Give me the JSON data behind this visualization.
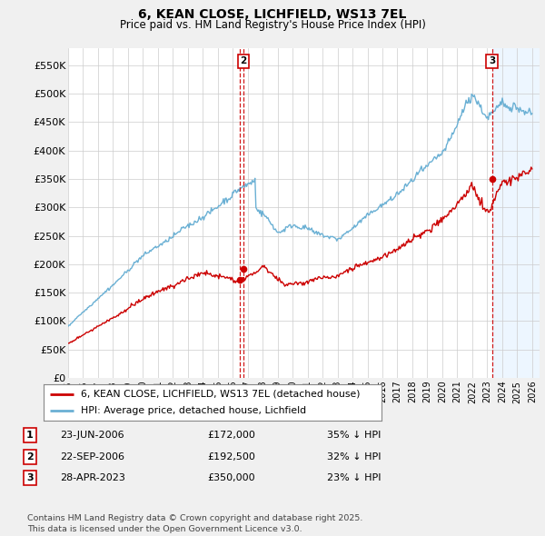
{
  "title": "6, KEAN CLOSE, LICHFIELD, WS13 7EL",
  "subtitle": "Price paid vs. HM Land Registry's House Price Index (HPI)",
  "ylim": [
    0,
    580000
  ],
  "yticks": [
    0,
    50000,
    100000,
    150000,
    200000,
    250000,
    300000,
    350000,
    400000,
    450000,
    500000,
    550000
  ],
  "ytick_labels": [
    "£0",
    "£50K",
    "£100K",
    "£150K",
    "£200K",
    "£250K",
    "£300K",
    "£350K",
    "£400K",
    "£450K",
    "£500K",
    "£550K"
  ],
  "xlim_start": 1995.0,
  "xlim_end": 2026.5,
  "background_color": "#f0f0f0",
  "plot_bg_color": "#ffffff",
  "grid_color": "#cccccc",
  "hpi_color": "#6ab0d4",
  "price_color": "#cc0000",
  "shade_color": "#ddeeff",
  "transactions": [
    {
      "label": "1",
      "date_num": 2006.47,
      "price": 172000
    },
    {
      "label": "2",
      "date_num": 2006.72,
      "price": 192500
    },
    {
      "label": "3",
      "date_num": 2023.32,
      "price": 350000
    }
  ],
  "legend_entries": [
    {
      "label": "6, KEAN CLOSE, LICHFIELD, WS13 7EL (detached house)",
      "color": "#cc0000"
    },
    {
      "label": "HPI: Average price, detached house, Lichfield",
      "color": "#6ab0d4"
    }
  ],
  "footer": "Contains HM Land Registry data © Crown copyright and database right 2025.\nThis data is licensed under the Open Government Licence v3.0.",
  "table_rows": [
    [
      "1",
      "23-JUN-2006",
      "£172,000",
      "35% ↓ HPI"
    ],
    [
      "2",
      "22-SEP-2006",
      "£192,500",
      "32% ↓ HPI"
    ],
    [
      "3",
      "28-APR-2023",
      "£350,000",
      "23% ↓ HPI"
    ]
  ]
}
